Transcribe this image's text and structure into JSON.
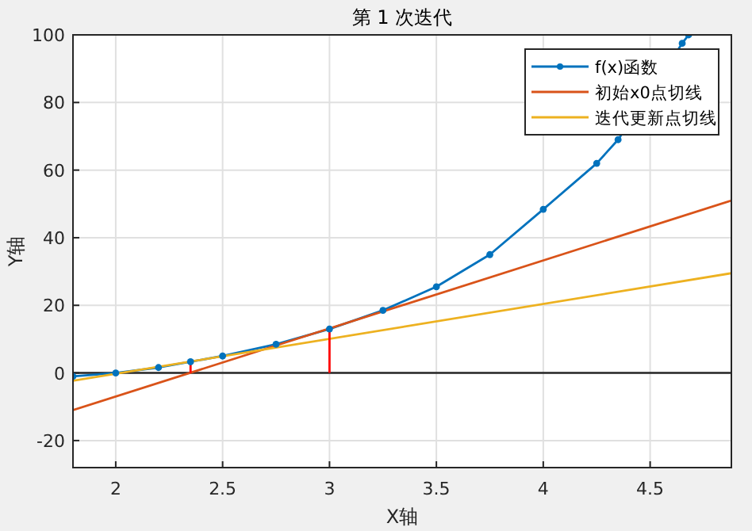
{
  "chart_data": {
    "type": "line",
    "title": "第 1 次迭代",
    "xlabel": "X轴",
    "ylabel": "Y轴",
    "xlim": [
      1.8,
      4.88
    ],
    "ylim": [
      -28,
      100
    ],
    "xticks": [
      2,
      2.5,
      3,
      3.5,
      4,
      4.5
    ],
    "yticks": [
      -20,
      0,
      20,
      40,
      60,
      80,
      100
    ],
    "grid": true,
    "legend": "top right",
    "line_style": "solid",
    "ref_lines": [
      {
        "axis": "y",
        "value": 0,
        "color": "#262626"
      }
    ],
    "series": [
      {
        "name": "f(x)函数",
        "color": "#0072bd",
        "marker": "circle",
        "x": [
          1.8,
          2,
          2.2,
          2.35,
          2.5,
          2.75,
          3,
          3.25,
          3.5,
          3.75,
          4,
          4.25,
          4.35,
          4.65,
          4.68
        ],
        "values": [
          -1,
          0,
          1.6,
          3.3,
          5,
          8.5,
          13,
          18.5,
          25.5,
          35,
          48.4,
          62,
          69,
          97.5,
          100
        ]
      },
      {
        "name": "初始x0点切线",
        "color": "#d95319",
        "x": [
          1.8,
          4.88
        ],
        "values": [
          -11,
          51
        ]
      },
      {
        "name": "迭代更新点切线",
        "color": "#edb120",
        "x": [
          1.8,
          4.88
        ],
        "values": [
          -2.3,
          29.5
        ]
      },
      {
        "color": "#ff0000",
        "x": [
          2.35,
          2.35
        ],
        "values": [
          0,
          3.3
        ]
      },
      {
        "color": "#ff0000",
        "x": [
          3,
          3
        ],
        "values": [
          0,
          13
        ]
      }
    ]
  }
}
